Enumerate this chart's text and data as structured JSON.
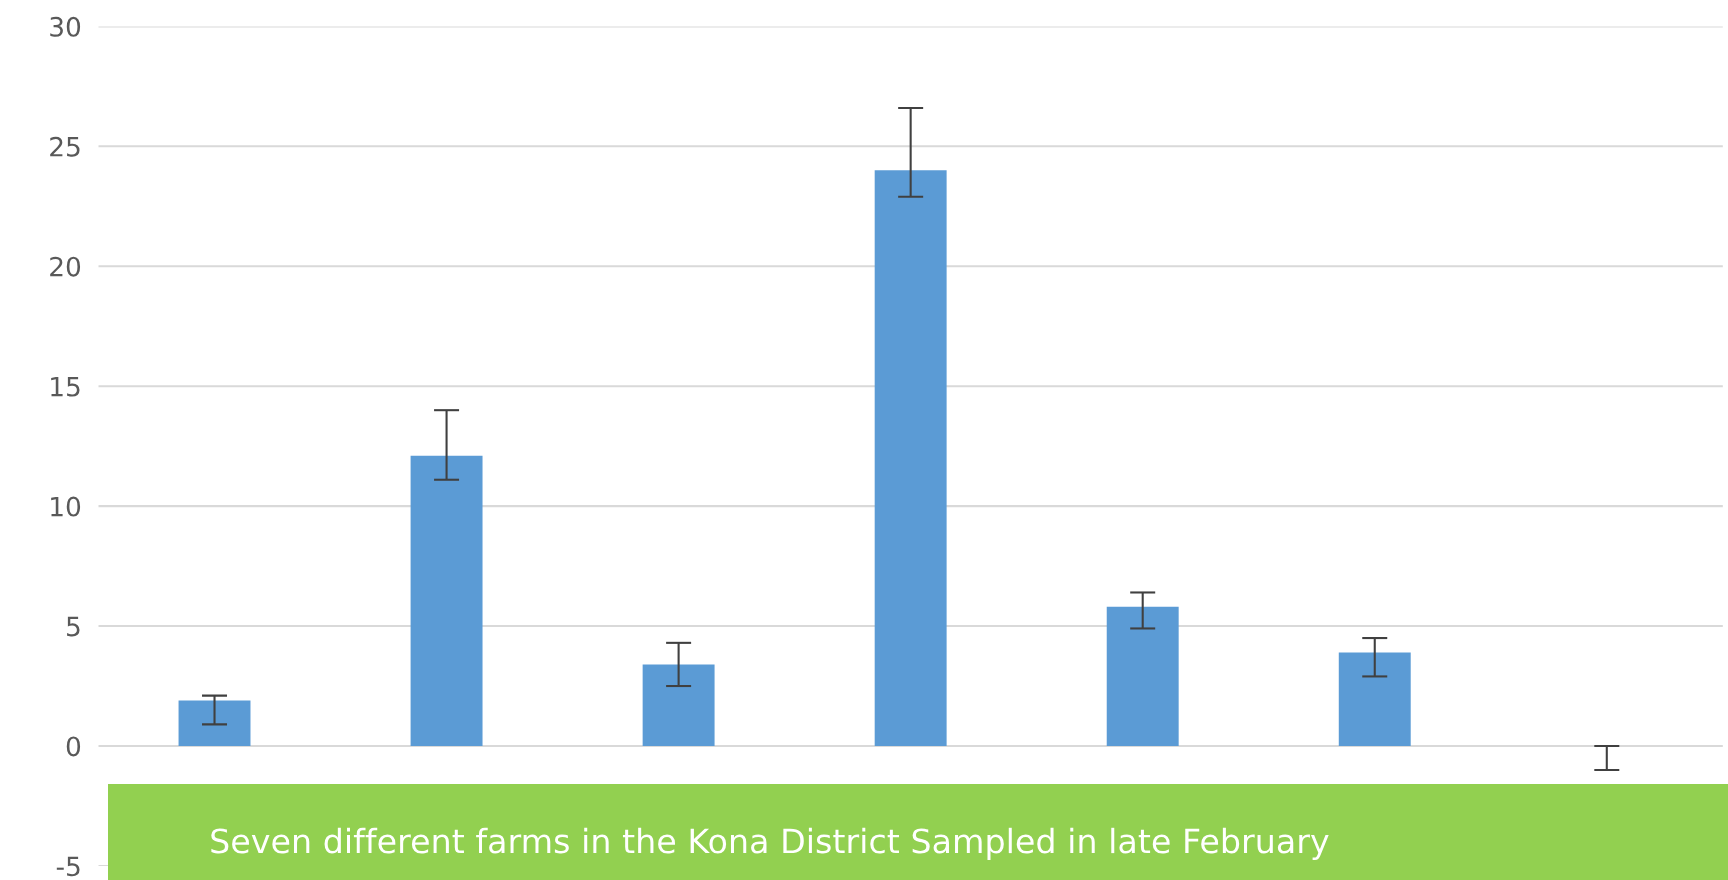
{
  "chart_data": {
    "type": "bar",
    "categories": [
      null,
      null,
      null,
      null,
      null,
      null,
      null
    ],
    "values": [
      1.9,
      12.1,
      3.4,
      24,
      5.8,
      3.9,
      0
    ],
    "errors": [
      [
        0.9,
        2.1
      ],
      [
        11.1,
        14.0
      ],
      [
        2.5,
        4.3
      ],
      [
        22.9,
        26.6
      ],
      [
        4.9,
        6.4
      ],
      [
        2.9,
        4.5
      ],
      [
        -1.0,
        0
      ]
    ],
    "color": "#5b9bd5",
    "ylim": [
      -5,
      30
    ],
    "yticks": [
      -5,
      0,
      5,
      10,
      15,
      20,
      25,
      30
    ],
    "grid": "y",
    "annotations": [
      "Seven different farms in the Kona District Sampled in late February"
    ]
  }
}
